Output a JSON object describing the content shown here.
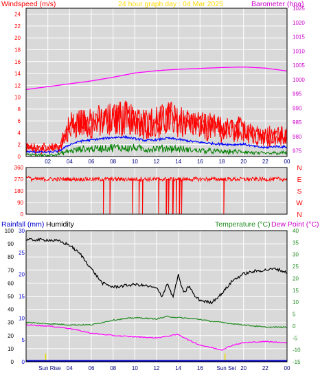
{
  "header": {
    "left_title": "Windspeed (m/s)",
    "center_title": "24 hour graph day : 04 Mar 2025",
    "right_title": "Barometer (hpa)"
  },
  "colors": {
    "title_red": "#ff0000",
    "title_yellow": "#ffd800",
    "title_magenta": "#cc00cc",
    "plot_bg": "#d9d9d9",
    "grid": "#ffffff",
    "wind_gust": "#ff0000",
    "wind_avg": "#0000ff",
    "wind_low": "#008000",
    "barometer": "#ff00ff",
    "direction": "#ff0000",
    "humidity": "#000000",
    "temperature": "#228b22",
    "dewpoint": "#ff00ff",
    "rainfall": "#0000cc",
    "sun_marker": "#e8e000"
  },
  "chart_data": [
    {
      "type": "line",
      "name": "wind_barometer",
      "x_ticks": [
        "02",
        "04",
        "06",
        "08",
        "10",
        "12",
        "14",
        "16",
        "18",
        "20",
        "22",
        "00"
      ],
      "y_left_ticks": [
        "0",
        "2",
        "4",
        "6",
        "8",
        "10",
        "12",
        "14",
        "16",
        "18",
        "20",
        "22",
        "24"
      ],
      "y_left_range": [
        0,
        25
      ],
      "y_right_ticks": [
        "975",
        "980",
        "985",
        "990",
        "995",
        "1000",
        "1005",
        "1010",
        "1015",
        "1020",
        "1025"
      ],
      "y_right_range": [
        973,
        1025
      ],
      "x_range_hours": [
        0,
        24
      ],
      "grid": true,
      "series": [
        {
          "key": "gust",
          "x": [
            0,
            1,
            2,
            3,
            4,
            5,
            6,
            7,
            8,
            9,
            10,
            11,
            12,
            13,
            14,
            15,
            16,
            17,
            18,
            19,
            20,
            21,
            22,
            23,
            24
          ],
          "y": [
            1.5,
            1.4,
            1.3,
            1.6,
            5.0,
            5.8,
            5.5,
            6.0,
            6.2,
            6.5,
            6.0,
            5.6,
            5.8,
            6.4,
            6.0,
            5.5,
            5.2,
            4.8,
            4.6,
            4.4,
            4.6,
            3.8,
            3.3,
            3.6,
            3.5
          ]
        },
        {
          "key": "avg",
          "x": [
            0,
            1,
            2,
            3,
            4,
            5,
            6,
            7,
            8,
            9,
            10,
            11,
            12,
            13,
            14,
            15,
            16,
            17,
            18,
            19,
            20,
            21,
            22,
            23,
            24
          ],
          "y": [
            0.8,
            0.8,
            0.7,
            0.9,
            2.0,
            2.6,
            2.8,
            3.0,
            3.2,
            3.3,
            3.0,
            2.7,
            2.8,
            3.1,
            2.9,
            2.6,
            2.4,
            2.2,
            2.1,
            2.0,
            2.1,
            1.7,
            1.5,
            1.7,
            1.6
          ]
        },
        {
          "key": "low",
          "x": [
            0,
            1,
            2,
            3,
            4,
            5,
            6,
            7,
            8,
            9,
            10,
            11,
            12,
            13,
            14,
            15,
            16,
            17,
            18,
            19,
            20,
            21,
            22,
            23,
            24
          ],
          "y": [
            0.3,
            0.3,
            0.2,
            0.4,
            0.9,
            1.2,
            1.3,
            1.4,
            1.5,
            1.5,
            1.4,
            1.2,
            1.3,
            1.4,
            1.3,
            1.1,
            1.0,
            0.9,
            0.8,
            0.8,
            0.8,
            0.6,
            0.5,
            0.6,
            0.6
          ]
        },
        {
          "key": "barometer",
          "x": [
            0,
            2,
            4,
            6,
            8,
            10,
            12,
            14,
            16,
            18,
            20,
            22,
            24
          ],
          "y": [
            996.5,
            997.5,
            998.5,
            999.5,
            1000.8,
            1002.3,
            1003.1,
            1003.6,
            1003.9,
            1004.2,
            1004.4,
            1004.0,
            1003.0
          ]
        }
      ]
    },
    {
      "type": "scatter",
      "name": "wind_direction",
      "x_ticks": [
        "02",
        "04",
        "06",
        "08",
        "10",
        "12",
        "14",
        "16",
        "18",
        "20",
        "22",
        "00"
      ],
      "y_left_ticks": [
        "0",
        "90",
        "180",
        "270",
        "360"
      ],
      "y_right_labels": [
        "N",
        "W",
        "S",
        "E",
        "N"
      ],
      "y_range": [
        0,
        360
      ],
      "typical_direction": 270,
      "drops_to_zero_at_hours": [
        7.1,
        7.7,
        9.8,
        10.4,
        10.7,
        12.2,
        12.9,
        13.1,
        13.5,
        13.8,
        14.1,
        14.3,
        18.2
      ]
    },
    {
      "type": "line",
      "name": "humidity_temperature",
      "x_ticks": [
        "Sun Rise",
        "04",
        "06",
        "08",
        "10",
        "12",
        "14",
        "16",
        "Sun Set",
        "20",
        "22",
        "00"
      ],
      "y_humidity_ticks": [
        "0",
        "10",
        "20",
        "30",
        "40",
        "50",
        "60",
        "70",
        "80",
        "90",
        "100"
      ],
      "y_rain_ticks": [
        "0",
        "5",
        "10",
        "15",
        "20",
        "25",
        "30"
      ],
      "y_temp_ticks": [
        "-15",
        "-10",
        "-5",
        "0",
        "5",
        "10",
        "15",
        "20",
        "25",
        "30",
        "35",
        "40"
      ],
      "humidity_range": [
        0,
        100
      ],
      "temp_range": [
        -15,
        40
      ],
      "x_range_hours": [
        0,
        24
      ],
      "sun_rise_hour": 1.8,
      "sun_set_hour": 18.3,
      "series": [
        {
          "key": "humidity",
          "x": [
            0,
            2,
            3,
            4,
            5,
            6,
            7,
            8,
            9,
            10,
            11,
            12,
            12.5,
            13,
            13.5,
            14,
            14.5,
            15,
            15.5,
            16,
            17,
            18,
            19,
            20,
            21,
            22,
            23,
            24
          ],
          "y": [
            93,
            93,
            92,
            89,
            82,
            71,
            60,
            57,
            58,
            59,
            58,
            56,
            50,
            60,
            49,
            66,
            52,
            58,
            50,
            47,
            45,
            52,
            62,
            67,
            69,
            70,
            71,
            68
          ]
        },
        {
          "key": "temperature",
          "x": [
            0,
            2,
            4,
            6,
            8,
            10,
            12,
            13,
            14,
            15,
            16,
            17,
            18,
            20,
            22,
            24
          ],
          "y": [
            1.5,
            1.0,
            0.5,
            0.5,
            2.5,
            3.5,
            3.0,
            4.0,
            3.5,
            3.2,
            2.8,
            2.0,
            1.5,
            0.5,
            -0.5,
            -0.5
          ]
        },
        {
          "key": "dewpoint",
          "x": [
            0,
            2,
            4,
            6,
            8,
            10,
            12,
            14,
            15,
            16,
            17,
            18,
            19,
            20,
            22,
            24
          ],
          "y": [
            0.5,
            0,
            -1,
            -3,
            -4,
            -4.5,
            -5,
            -3.5,
            -6,
            -8,
            -9,
            -10,
            -8,
            -7,
            -6.5,
            -7
          ]
        },
        {
          "key": "rainfall",
          "x": [
            0,
            24
          ],
          "y": [
            0,
            0
          ]
        }
      ]
    }
  ],
  "panel3_header": {
    "rainfall_label": "Rainfall (mm)",
    "humidity_label": "Humidity",
    "temperature_label": "Temperature (°C)",
    "dewpoint_label": "Dew Point (°C)"
  }
}
